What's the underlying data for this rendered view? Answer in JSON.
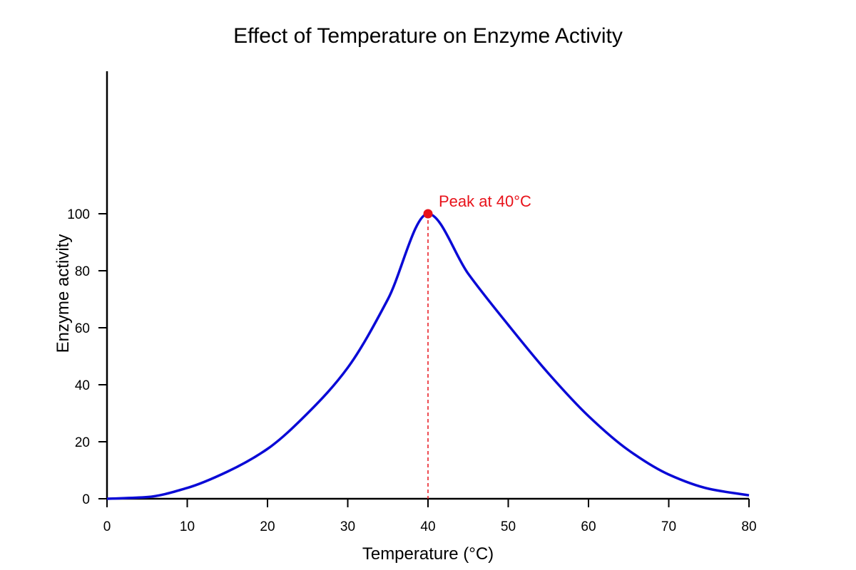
{
  "chart_data": {
    "type": "line",
    "title": "Effect of Temperature on Enzyme Activity",
    "xlabel": "Temperature (°C)",
    "ylabel": "Enzyme activity",
    "xlim": [
      0,
      80
    ],
    "ylim": [
      0,
      150
    ],
    "x_ticks": [
      0,
      10,
      20,
      30,
      40,
      50,
      60,
      70,
      80
    ],
    "y_ticks": [
      0,
      20,
      40,
      60,
      80,
      100
    ],
    "grid": false,
    "series": [
      {
        "x": [
          0,
          5,
          10,
          15,
          20,
          25,
          30,
          35,
          40,
          45,
          50,
          55,
          60,
          65,
          70,
          75,
          80
        ],
        "y": [
          0,
          0.6,
          3.8,
          9.5,
          17.5,
          30,
          46,
          70,
          100,
          79,
          61,
          44,
          29,
          17,
          8.5,
          3.5,
          1.2
        ]
      }
    ],
    "peak": {
      "x": 40,
      "y": 100,
      "label": "Peak at 40°C"
    },
    "colors": {
      "line": "#0a0ad6",
      "peak": "#e8121a",
      "axis": "#000000"
    }
  }
}
